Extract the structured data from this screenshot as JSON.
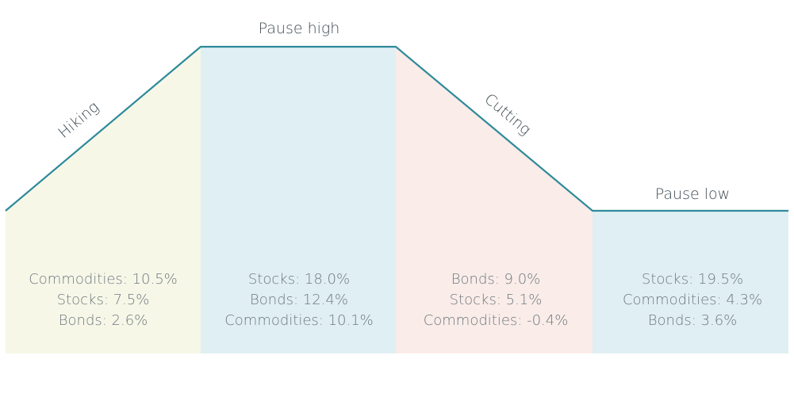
{
  "colors": {
    "line": "#2e8a9a",
    "hiking_fill": "#f7f7e8",
    "pause_high_fill": "#e0eff3",
    "cutting_fill": "#faece8",
    "pause_low_fill": "#e0eff3",
    "title_text": "#3e4a52",
    "stat_text": "#6e7a82"
  },
  "phases": [
    {
      "label": "Hiking",
      "stats": [
        "Commodities: 10.5%",
        "Stocks: 7.5%",
        "Bonds: 2.6%"
      ]
    },
    {
      "label": "Pause high",
      "stats": [
        "Stocks: 18.0%",
        "Bonds: 12.4%",
        "Commodities: 10.1%"
      ]
    },
    {
      "label": "Cutting",
      "stats": [
        "Bonds: 9.0%",
        "Stocks: 5.1%",
        "Commodities: -0.4%"
      ]
    },
    {
      "label": "Pause low",
      "stats": [
        "Stocks: 19.5%",
        "Commodities: 4.3%",
        "Bonds: 3.6%"
      ]
    }
  ]
}
